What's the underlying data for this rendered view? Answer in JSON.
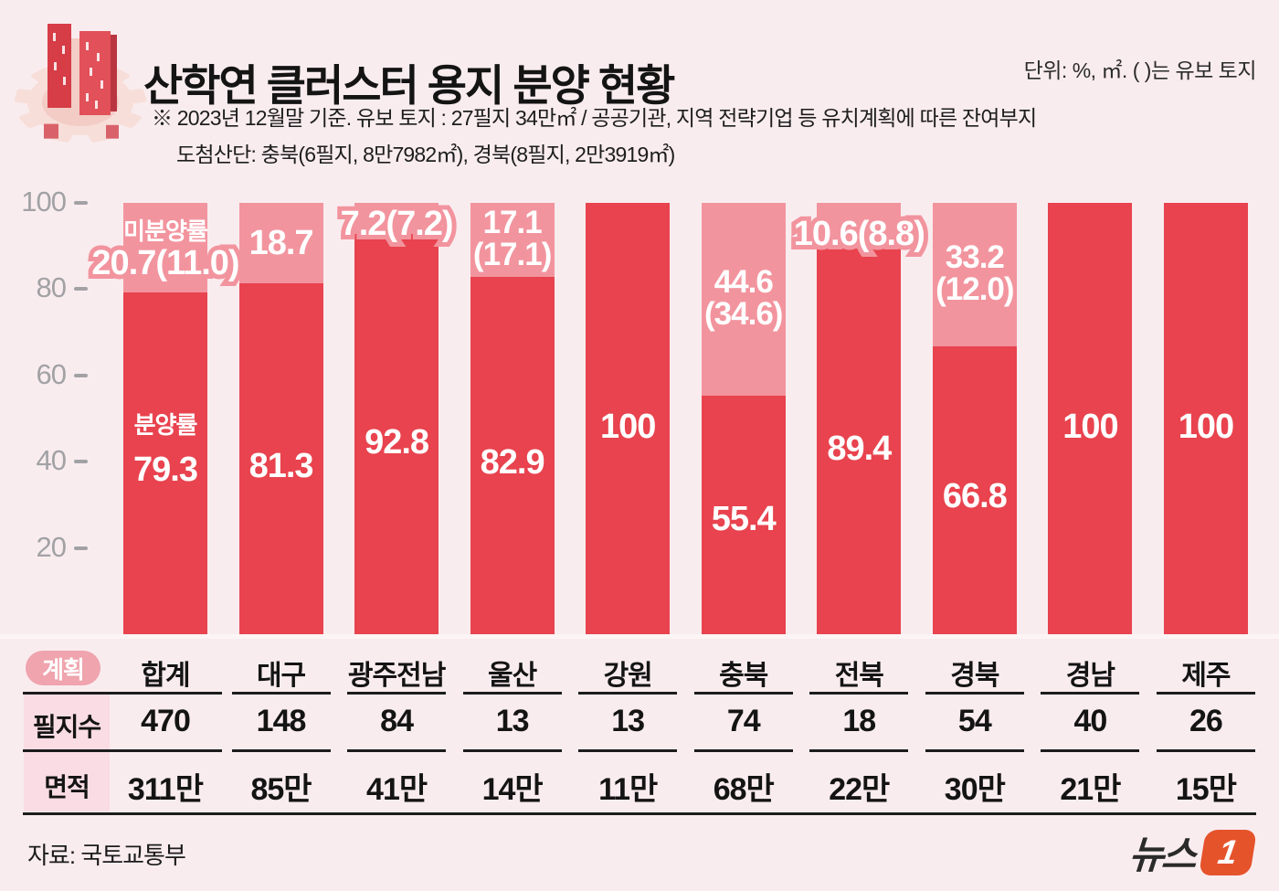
{
  "header": {
    "title": "산학연 클러스터 용지 분양 현황",
    "unit_note": "단위: %, ㎡. ( )는 유보 토지",
    "note_line1": "※ 2023년 12월말 기준. 유보 토지 : 27필지 34만㎡ / 공공기관, 지역 전략기업 등 유치계획에 따른 잔여부지",
    "note_line2": "도첨산단: 충북(6필지, 8만7982㎡), 경북(8필지, 2만3919㎡)",
    "icon": "building-gear-icon"
  },
  "chart_data": {
    "type": "bar",
    "stacked": true,
    "title": "산학연 클러스터 용지 분양 현황",
    "xlabel": "",
    "ylabel": "",
    "ylim": [
      0,
      100
    ],
    "y_ticks": [
      100,
      80,
      60,
      40,
      20
    ],
    "grid": false,
    "legend": {
      "sold": "분양률",
      "unsold": "미분양률"
    },
    "categories": [
      "합계",
      "대구",
      "광주전남",
      "울산",
      "강원",
      "충북",
      "전북",
      "경북",
      "경남",
      "제주"
    ],
    "series": [
      {
        "name": "분양률",
        "color": "#e8434e",
        "values": [
          79.3,
          81.3,
          92.8,
          82.9,
          100,
          55.4,
          89.4,
          66.8,
          100,
          100
        ]
      },
      {
        "name": "미분양률",
        "color": "#f2949e",
        "values": [
          20.7,
          18.7,
          7.2,
          17.1,
          0,
          44.6,
          10.6,
          33.2,
          0,
          0
        ]
      }
    ],
    "reserved_land_pct": [
      11.0,
      null,
      7.2,
      17.1,
      null,
      34.6,
      8.8,
      12.0,
      null,
      null
    ],
    "bars": [
      {
        "category": "합계",
        "sold": 79.3,
        "unsold": 20.7,
        "unsold_label": "20.7(11.0)",
        "unsold_label_style": "outline",
        "show_series_names": true
      },
      {
        "category": "대구",
        "sold": 81.3,
        "unsold": 18.7,
        "unsold_label": "18.7",
        "unsold_label_style": "inside"
      },
      {
        "category": "광주전남",
        "sold": 92.8,
        "unsold": 7.2,
        "unsold_label": "7.2(7.2)",
        "unsold_label_style": "outline"
      },
      {
        "category": "울산",
        "sold": 82.9,
        "unsold": 17.1,
        "unsold_label": "17.1|(17.1)",
        "unsold_label_style": "inside-two-line"
      },
      {
        "category": "강원",
        "sold": 100,
        "unsold": 0
      },
      {
        "category": "충북",
        "sold": 55.4,
        "unsold": 44.6,
        "unsold_label": "44.6|(34.6)",
        "unsold_label_style": "inside-two-line"
      },
      {
        "category": "전북",
        "sold": 89.4,
        "unsold": 10.6,
        "unsold_label": "10.6(8.8)",
        "unsold_label_style": "outline"
      },
      {
        "category": "경북",
        "sold": 66.8,
        "unsold": 33.2,
        "unsold_label": "33.2|(12.0)",
        "unsold_label_style": "inside-two-line"
      },
      {
        "category": "경남",
        "sold": 100,
        "unsold": 0
      },
      {
        "category": "제주",
        "sold": 100,
        "unsold": 0
      }
    ]
  },
  "table": {
    "corner_label": "계획",
    "columns": [
      "합계",
      "대구",
      "광주전남",
      "울산",
      "강원",
      "충북",
      "전북",
      "경북",
      "경남",
      "제주"
    ],
    "rows": [
      {
        "label": "필지수",
        "values": [
          "470",
          "148",
          "84",
          "13",
          "13",
          "74",
          "18",
          "54",
          "40",
          "26"
        ]
      },
      {
        "label": "면적",
        "values": [
          "311만",
          "85만",
          "41만",
          "14만",
          "11만",
          "68만",
          "22만",
          "30만",
          "21만",
          "15만"
        ]
      }
    ]
  },
  "footer": {
    "source": "자료: 국토교통부",
    "logo_text": "뉴스",
    "logo_badge": "1"
  },
  "colors": {
    "sold": "#e8434e",
    "unsold": "#f2949e",
    "background": "#f9ecef",
    "row_label_bg": "#fadce4",
    "pill_bg": "#efa4ae",
    "axis_gray": "#a2a2a5",
    "logo_orange": "#e5532b"
  }
}
